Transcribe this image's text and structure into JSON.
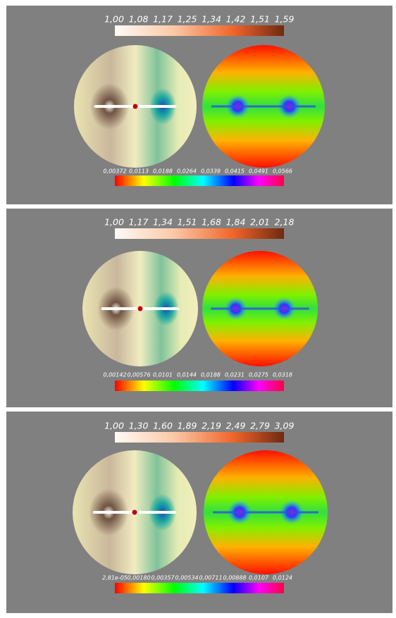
{
  "panels": [
    {
      "top_scale": {
        "labels": [
          "1,00",
          "1,08",
          "1,17",
          "1,25",
          "1,34",
          "1,42",
          "1,51",
          "1,59"
        ]
      },
      "bottom_scale": {
        "labels": [
          "0,00372",
          "0,0113",
          "0,0188",
          "0,0264",
          "0,0339",
          "0,0415",
          "0,0491",
          "0,0566"
        ]
      }
    },
    {
      "top_scale": {
        "labels": [
          "1,00",
          "1,17",
          "1,34",
          "1,51",
          "1,68",
          "1,84",
          "2,01",
          "2,18"
        ]
      },
      "bottom_scale": {
        "labels": [
          "0,00142",
          "0,00576",
          "0,0101",
          "0,0144",
          "0,0188",
          "0,0231",
          "0,0275",
          "0,0318"
        ]
      }
    },
    {
      "top_scale": {
        "labels": [
          "1,00",
          "1,30",
          "1,60",
          "1,89",
          "2,19",
          "2,49",
          "2,79",
          "3,09"
        ]
      },
      "bottom_scale": {
        "labels": [
          "2,81e-05",
          "0,00180",
          "0,00357",
          "0,00534",
          "0,00711",
          "0,00888",
          "0,0107",
          "0,0124"
        ]
      }
    }
  ]
}
